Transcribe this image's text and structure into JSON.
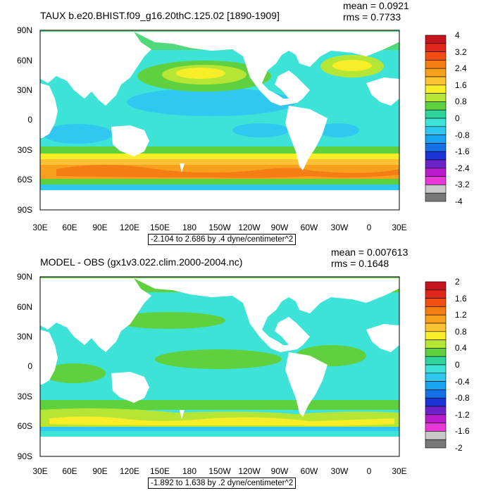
{
  "panels": [
    {
      "title": "TAUX b.e20.BHIST.f09_g16.20thC.125.02 [1890-1909]",
      "mean": "mean = 0.0921",
      "rms": "rms = 0.7733",
      "range_note": "-2.104 to 2.686 by .4 dyne/centimeter^2",
      "colorbar_labels": [
        "4",
        "3.2",
        "2.4",
        "1.6",
        "0.8",
        "0",
        "-0.8",
        "-1.6",
        "-2.4",
        "-3.2",
        "-4"
      ],
      "colorbar_colors": [
        "#c4141e",
        "#e0281a",
        "#f24e12",
        "#f47d14",
        "#f7a01d",
        "#fbc233",
        "#f7ee28",
        "#b6e635",
        "#5fd13e",
        "#2fd49c",
        "#3ee3d8",
        "#30c8f0",
        "#1aa3f0",
        "#1670e6",
        "#1b34d8",
        "#6c22c8",
        "#b81cc8",
        "#e838d8",
        "#c8c8c8",
        "#787878"
      ]
    },
    {
      "title": "MODEL - OBS (gx1v3.022.clim.2000-2004.nc)",
      "mean": "mean = 0.007613",
      "rms": "rms = 0.1648",
      "range_note": "-1.892 to 1.638 by .2 dyne/centimeter^2",
      "colorbar_labels": [
        "2",
        "1.6",
        "1.2",
        "0.8",
        "0.4",
        "0",
        "-0.4",
        "-0.8",
        "-1.2",
        "-1.6",
        "-2"
      ],
      "colorbar_colors": [
        "#c4141e",
        "#e0281a",
        "#f24e12",
        "#f47d14",
        "#f7a01d",
        "#fbc233",
        "#f7ee28",
        "#b6e635",
        "#5fd13e",
        "#2fd49c",
        "#3ee3d8",
        "#30c8f0",
        "#1aa3f0",
        "#1670e6",
        "#1b34d8",
        "#6c22c8",
        "#b81cc8",
        "#e838d8",
        "#c8c8c8",
        "#787878"
      ]
    }
  ],
  "lat_labels": [
    "90N",
    "60N",
    "30N",
    "0",
    "30S",
    "60S",
    "90S"
  ],
  "lon_labels": [
    "30E",
    "60E",
    "90E",
    "120E",
    "150E",
    "180",
    "150W",
    "120W",
    "90W",
    "60W",
    "30W",
    "0",
    "30E"
  ]
}
